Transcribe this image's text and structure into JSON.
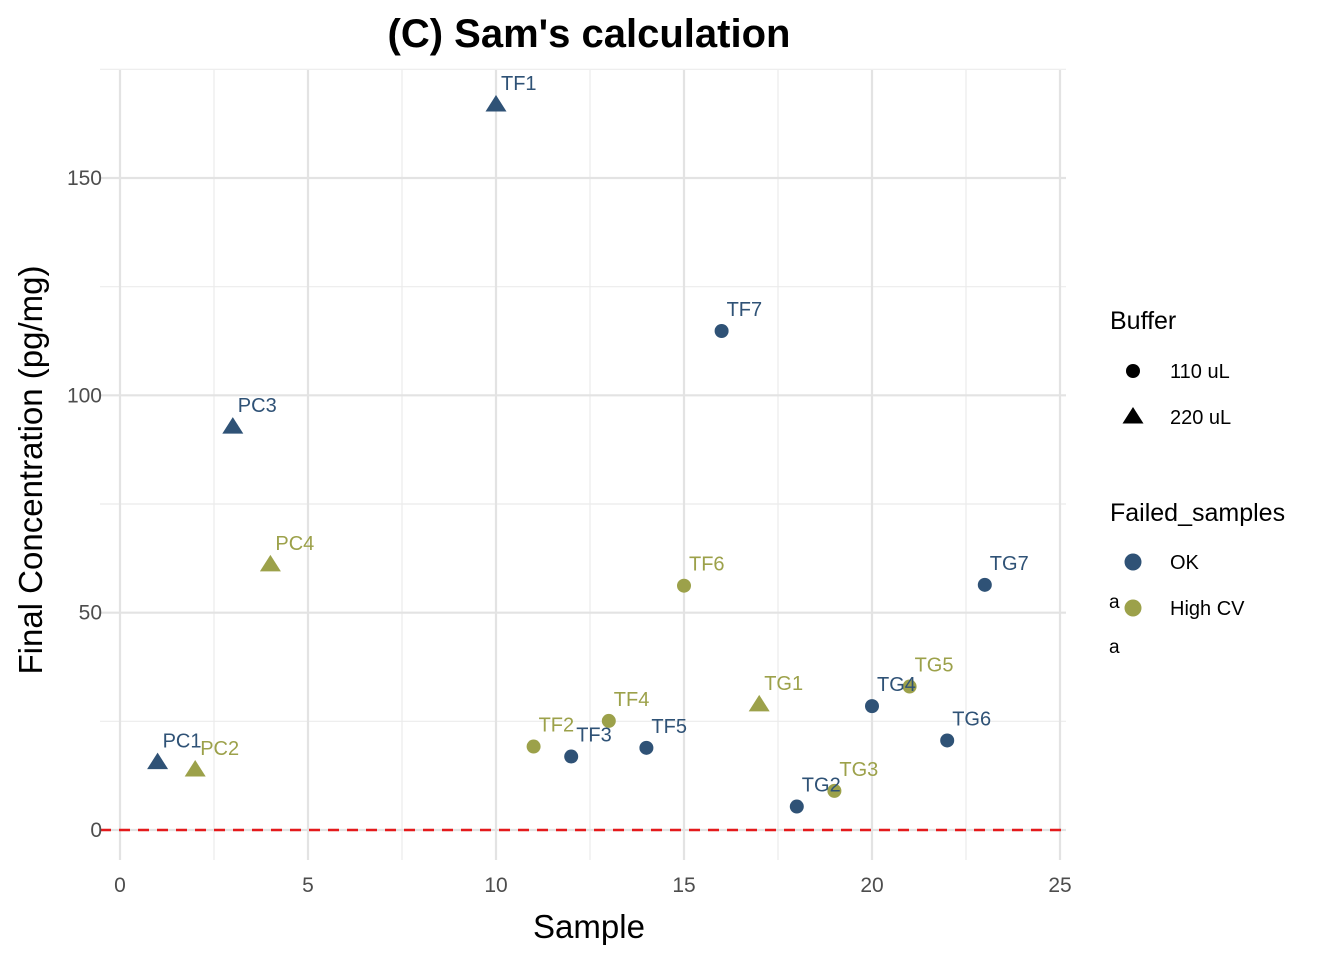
{
  "chart_data": {
    "type": "scatter",
    "title": "(C) Sam's calculation",
    "xlabel": "Sample",
    "ylabel": "Final Concentration (pg/mg)",
    "xlim": [
      0,
      25
    ],
    "ylim": [
      -8,
      172
    ],
    "x_ticks": [
      0,
      5,
      10,
      15,
      20,
      25
    ],
    "y_ticks": [
      0,
      50,
      100,
      150
    ],
    "grid": true,
    "reference_line": {
      "y": 0,
      "color": "#e41a1c",
      "style": "dashed"
    },
    "colors": {
      "OK": "#2f5276",
      "High CV": "#9ca14a"
    },
    "legend": {
      "placement": "right",
      "shape_title": "Buffer",
      "shape_entries": [
        {
          "label": "110 uL",
          "shape": "circle"
        },
        {
          "label": "220 uL",
          "shape": "triangle"
        }
      ],
      "color_title": "Failed_samples",
      "color_entries": [
        {
          "label": "OK",
          "key": "OK"
        },
        {
          "label": "High CV",
          "key": "High CV"
        }
      ],
      "stray_glyphs": [
        {
          "text": "a",
          "key": "OK"
        },
        {
          "text": "a",
          "key": "High CV"
        }
      ]
    },
    "points": [
      {
        "label": "PC1",
        "x": 1,
        "y": 15.5,
        "buffer": "220 uL",
        "status": "OK"
      },
      {
        "label": "PC2",
        "x": 2,
        "y": 13.8,
        "buffer": "220 uL",
        "status": "High CV"
      },
      {
        "label": "PC3",
        "x": 3,
        "y": 92.7,
        "buffer": "220 uL",
        "status": "OK"
      },
      {
        "label": "PC4",
        "x": 4,
        "y": 61.0,
        "buffer": "220 uL",
        "status": "High CV"
      },
      {
        "label": "TF1",
        "x": 10,
        "y": 166.8,
        "buffer": "220 uL",
        "status": "OK"
      },
      {
        "label": "TF2",
        "x": 11,
        "y": 19.2,
        "buffer": "110 uL",
        "status": "High CV"
      },
      {
        "label": "TF3",
        "x": 12,
        "y": 16.9,
        "buffer": "110 uL",
        "status": "OK"
      },
      {
        "label": "TF4",
        "x": 13,
        "y": 25.1,
        "buffer": "110 uL",
        "status": "High CV"
      },
      {
        "label": "TF5",
        "x": 14,
        "y": 18.9,
        "buffer": "110 uL",
        "status": "OK"
      },
      {
        "label": "TF6",
        "x": 15,
        "y": 56.2,
        "buffer": "110 uL",
        "status": "High CV"
      },
      {
        "label": "TF7",
        "x": 16,
        "y": 114.8,
        "buffer": "110 uL",
        "status": "OK"
      },
      {
        "label": "TG1",
        "x": 17,
        "y": 28.8,
        "buffer": "220 uL",
        "status": "High CV"
      },
      {
        "label": "TG2",
        "x": 18,
        "y": 5.4,
        "buffer": "110 uL",
        "status": "OK"
      },
      {
        "label": "TG3",
        "x": 19,
        "y": 9.0,
        "buffer": "110 uL",
        "status": "High CV"
      },
      {
        "label": "TG4",
        "x": 20,
        "y": 28.5,
        "buffer": "110 uL",
        "status": "OK"
      },
      {
        "label": "TG5",
        "x": 21,
        "y": 33.0,
        "buffer": "110 uL",
        "status": "High CV"
      },
      {
        "label": "TG6",
        "x": 22,
        "y": 20.6,
        "buffer": "110 uL",
        "status": "OK"
      },
      {
        "label": "TG7",
        "x": 23,
        "y": 56.4,
        "buffer": "110 uL",
        "status": "OK"
      }
    ]
  }
}
